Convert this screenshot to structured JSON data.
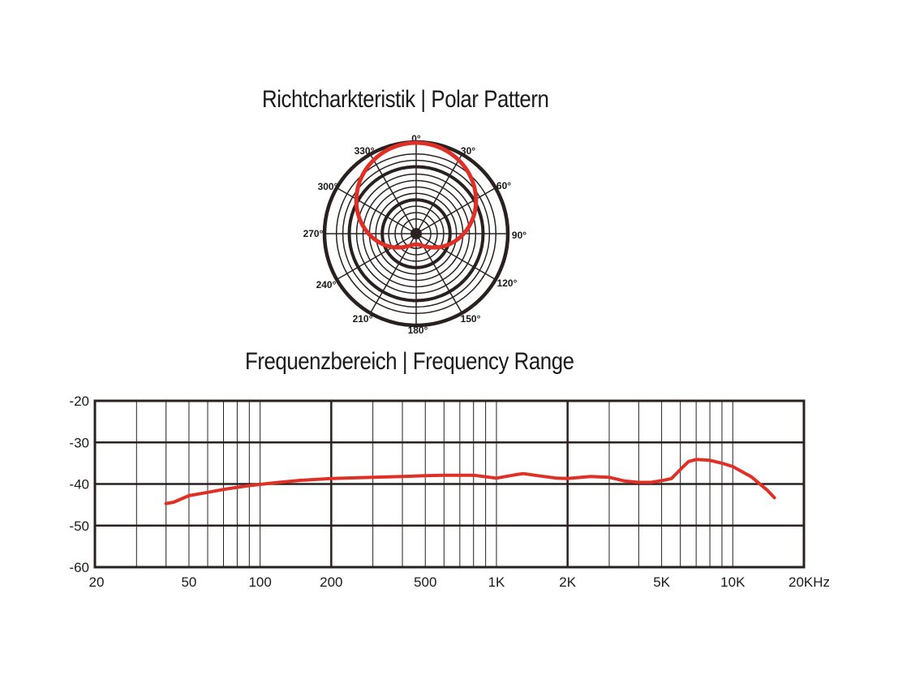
{
  "titles": {
    "polar": "Richtcharkteristik  |  Polar Pattern",
    "frequency": "Frequenzbereich  |  Frequency Range"
  },
  "colors": {
    "curve": "#e03025",
    "grid": "#2a2020"
  },
  "chart_data": [
    {
      "type": "polar",
      "title": "Richtcharkteristik  |  Polar Pattern",
      "angle_labels": [
        "0°",
        "30°",
        "60°",
        "90°",
        "120°",
        "150°",
        "180°",
        "210°",
        "240°",
        "270°",
        "300°",
        "330°"
      ],
      "pattern": "cardioid",
      "relative_response": [
        {
          "angle": 0,
          "r": 1.0
        },
        {
          "angle": 30,
          "r": 0.95
        },
        {
          "angle": 60,
          "r": 0.83
        },
        {
          "angle": 90,
          "r": 0.62
        },
        {
          "angle": 120,
          "r": 0.47
        },
        {
          "angle": 150,
          "r": 0.27
        },
        {
          "angle": 180,
          "r": 0.17
        },
        {
          "angle": 210,
          "r": 0.27
        },
        {
          "angle": 240,
          "r": 0.47
        },
        {
          "angle": 270,
          "r": 0.62
        },
        {
          "angle": 300,
          "r": 0.83
        },
        {
          "angle": 330,
          "r": 0.95
        }
      ]
    },
    {
      "type": "line",
      "title": "Frequenzbereich  |  Frequency Range",
      "x_scale": "log",
      "x_ticks": [
        20,
        50,
        100,
        200,
        500,
        1000,
        2000,
        5000,
        10000,
        20000
      ],
      "x_tick_labels": [
        "20",
        "50",
        "100",
        "200",
        "500",
        "1K",
        "2K",
        "5K",
        "10K",
        "20KHz"
      ],
      "y_ticks": [
        -20,
        -30,
        -40,
        -50,
        -60
      ],
      "y_tick_labels": [
        "-20",
        "-30",
        "-40",
        "-50",
        "-60"
      ],
      "ylim": [
        -60,
        -20
      ],
      "xlim": [
        20,
        20000
      ],
      "series": [
        {
          "x": [
            40,
            43,
            50,
            60,
            70,
            80,
            90,
            100,
            120,
            150,
            200,
            300,
            400,
            500,
            600,
            800,
            1000,
            1200,
            1300,
            1500,
            1800,
            2000,
            2500,
            3000,
            3500,
            4000,
            4500,
            5000,
            5500,
            6000,
            6500,
            7000,
            8000,
            9000,
            10000,
            12000,
            14000,
            15000
          ],
          "y": [
            -44.7,
            -44.4,
            -42.8,
            -42.0,
            -41.3,
            -40.8,
            -40.4,
            -40.1,
            -39.6,
            -39.1,
            -38.7,
            -38.4,
            -38.2,
            -38.0,
            -37.9,
            -37.9,
            -38.6,
            -37.8,
            -37.5,
            -38.0,
            -38.6,
            -38.7,
            -38.2,
            -38.4,
            -39.3,
            -39.6,
            -39.6,
            -39.2,
            -38.7,
            -36.5,
            -34.6,
            -34.1,
            -34.3,
            -35.0,
            -35.8,
            -38.3,
            -41.5,
            -43.3
          ]
        }
      ]
    }
  ]
}
